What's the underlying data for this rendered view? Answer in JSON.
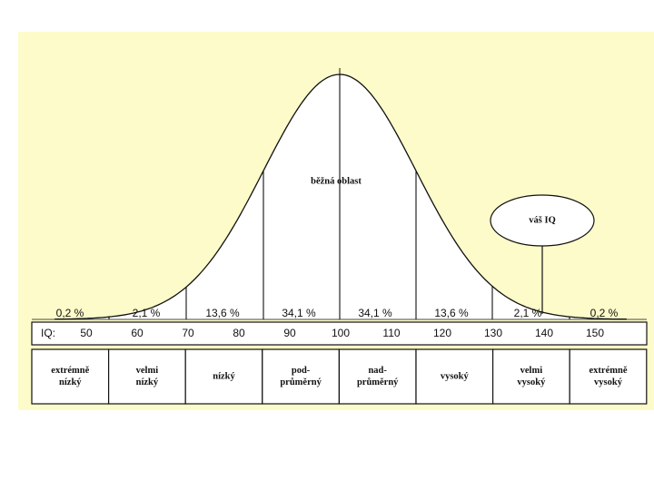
{
  "title": "běžná oblast",
  "callout": "váš IQ",
  "axis_label": "IQ:",
  "iq_ticks": [
    "50",
    "60",
    "70",
    "80",
    "90",
    "100",
    "110",
    "120",
    "130",
    "140",
    "150"
  ],
  "percentages": [
    "0,2 %",
    "2,1 %",
    "13,6 %",
    "34,1 %",
    "34,1 %",
    "13,6 %",
    "2,1 %",
    "0,2 %"
  ],
  "categories": [
    [
      "extrémně",
      "nízký"
    ],
    [
      "velmi",
      "nízký"
    ],
    [
      "nízký"
    ],
    [
      "pod-",
      "průměrný"
    ],
    [
      "nad-",
      "průměrný"
    ],
    [
      "vysoký"
    ],
    [
      "velmi",
      "vysoký"
    ],
    [
      "extrémně",
      "vysoký"
    ]
  ]
}
